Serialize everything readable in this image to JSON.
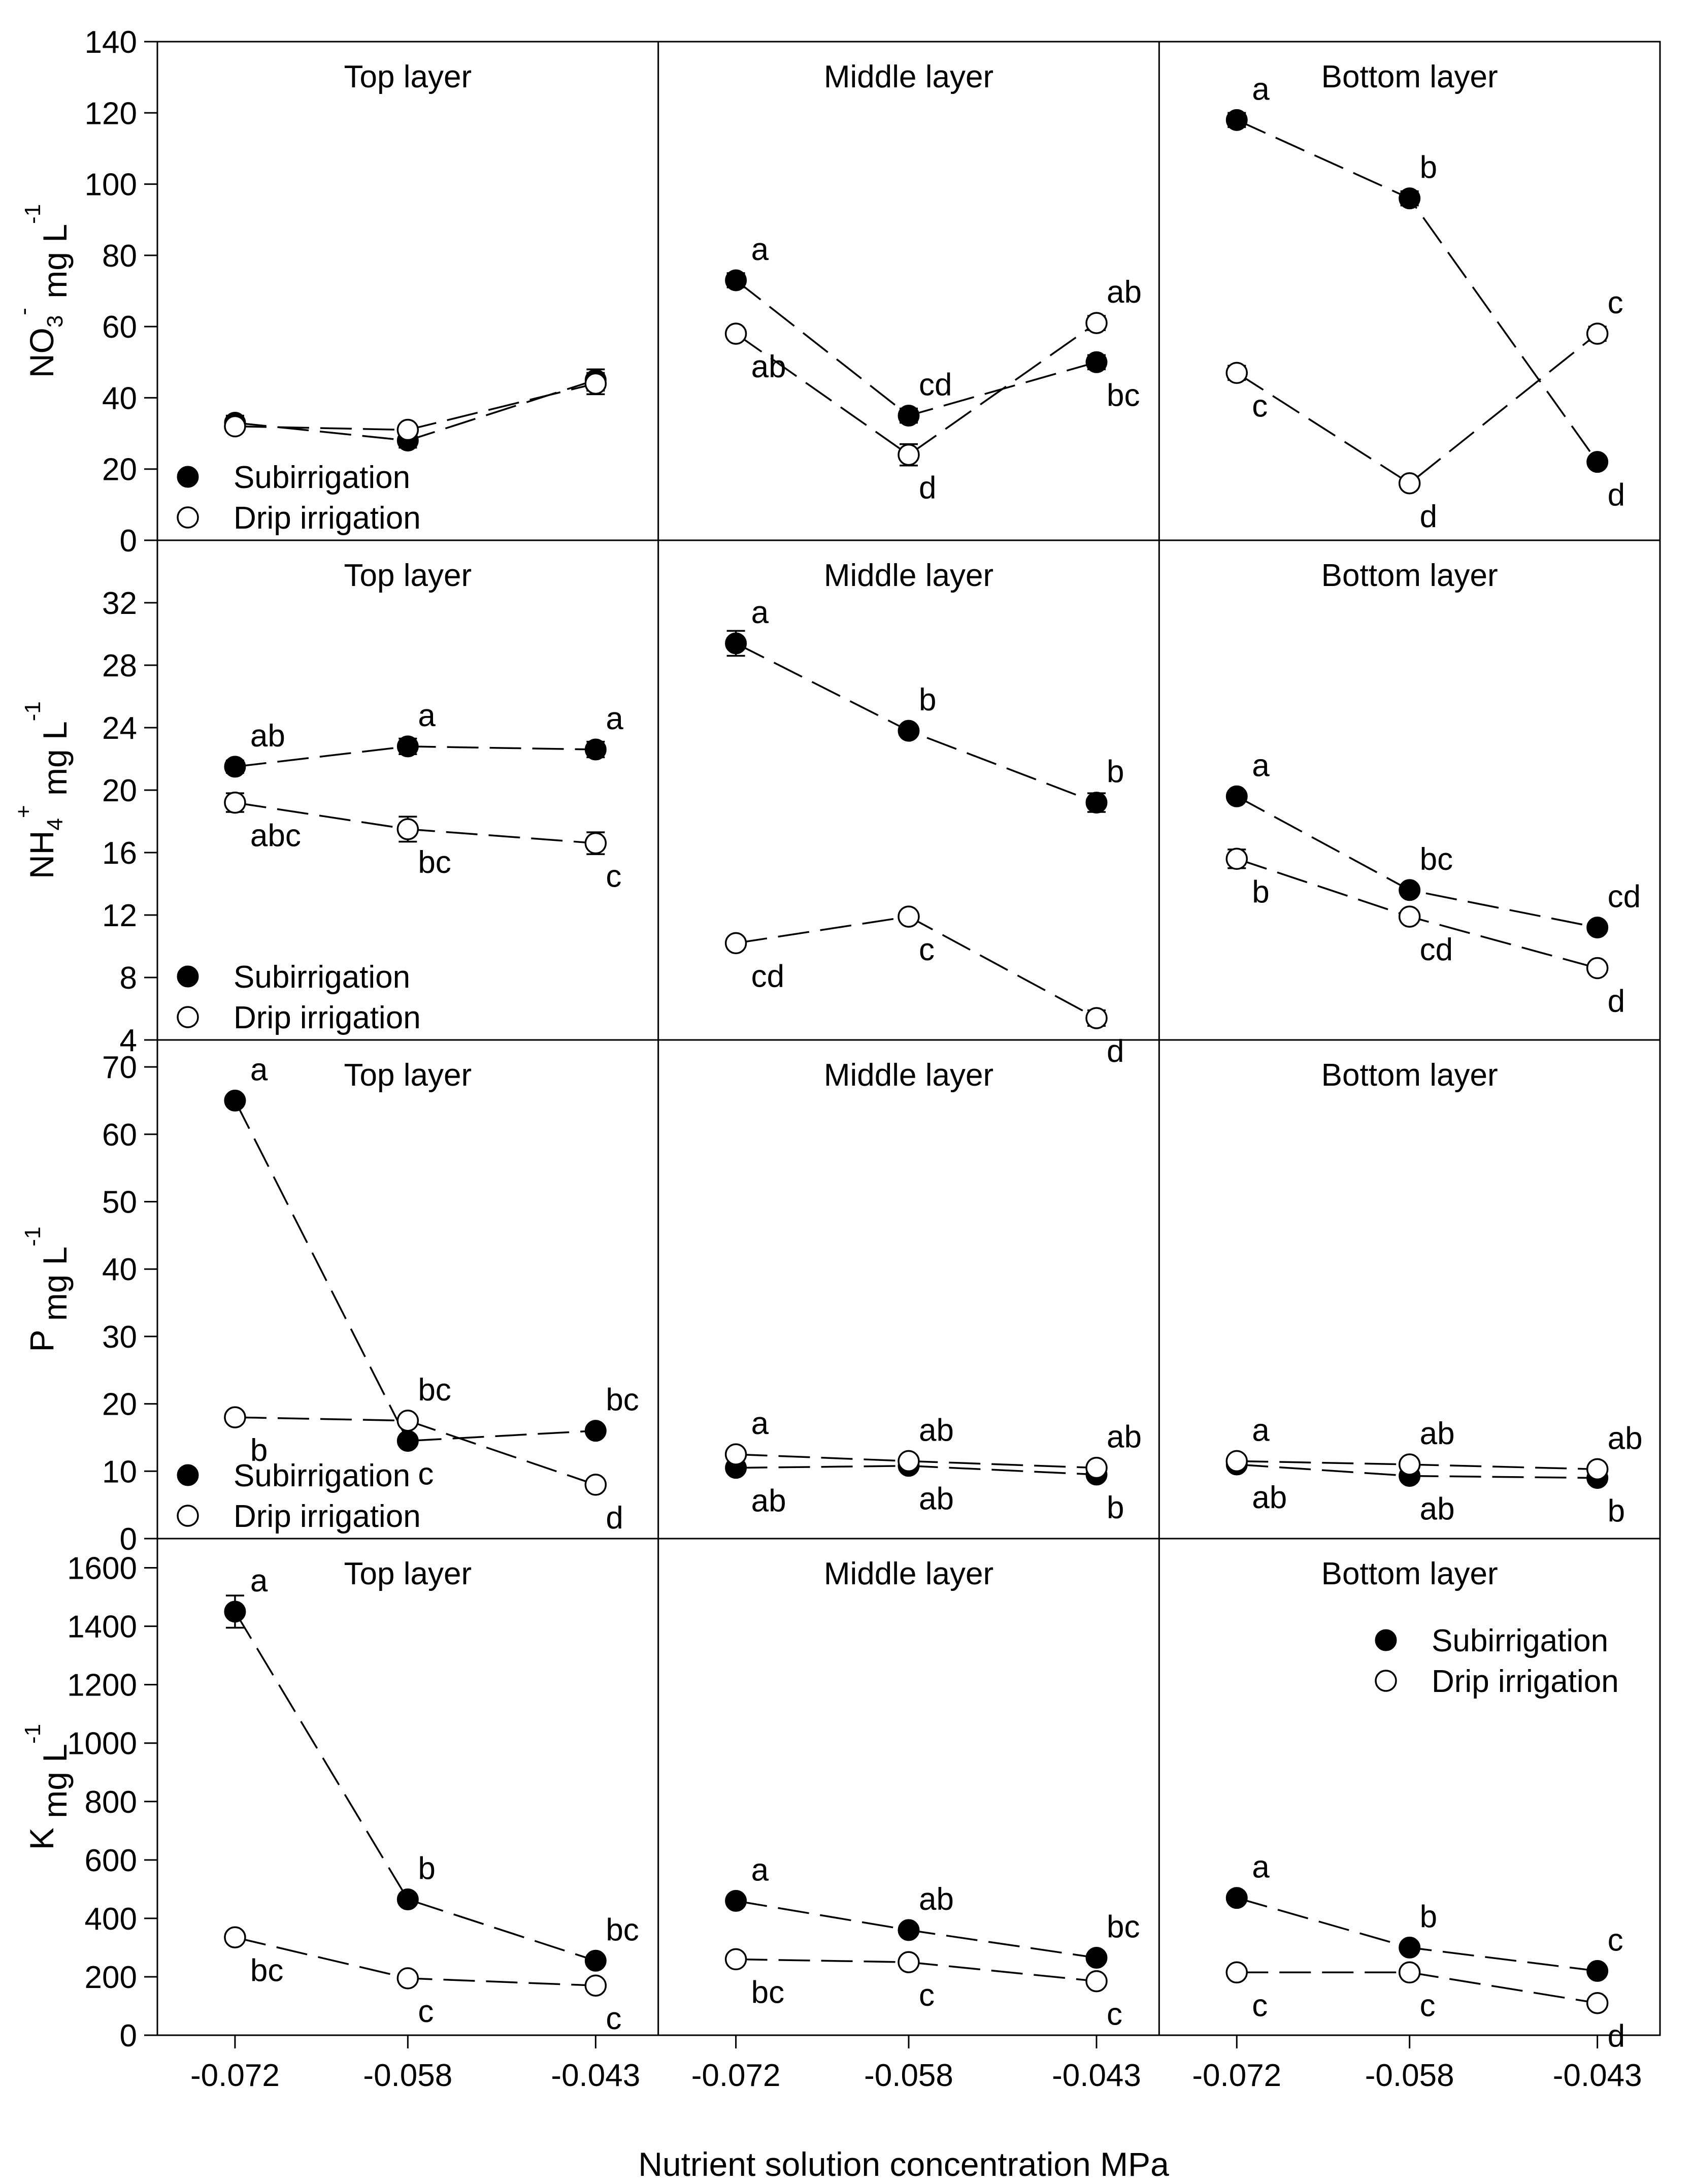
{
  "chart_data": {
    "type": "line",
    "xlabel": "Nutrient solution concentration MPa",
    "x_ticks": [
      "-0.072",
      "-0.058",
      "-0.043"
    ],
    "x": [
      -0.072,
      -0.058,
      -0.043
    ],
    "columns": [
      "Top layer",
      "Middle layer",
      "Bottom layer"
    ],
    "series_names": [
      "Subirrigation",
      "Drip irrigation"
    ],
    "rows": [
      {
        "ylabel_main": "NO",
        "ylabel_sub": "3",
        "ylabel_sup": "-",
        "ylabel_unit": " mg L",
        "ylabel_unit_sup": "-1",
        "ylim": [
          0,
          140
        ],
        "yticks": [
          "0",
          "20",
          "40",
          "60",
          "80",
          "100",
          "120",
          "140"
        ],
        "legend_col": 0,
        "panels": [
          {
            "title": "Top layer",
            "series": [
              {
                "name": "Subirrigation",
                "values": [
                  33,
                  28,
                  45
                ],
                "err": [
                  2,
                  2,
                  3
                ],
                "labels": [
                  "",
                  "",
                  ""
                ]
              },
              {
                "name": "Drip irrigation",
                "values": [
                  32,
                  31,
                  44
                ],
                "err": [
                  1,
                  1,
                  3
                ],
                "labels": [
                  "",
                  "",
                  ""
                ]
              }
            ]
          },
          {
            "title": "Middle layer",
            "series": [
              {
                "name": "Subirrigation",
                "values": [
                  73,
                  35,
                  50
                ],
                "err": [
                  2,
                  2,
                  2
                ],
                "labels": [
                  "a",
                  "cd",
                  "bc"
                ]
              },
              {
                "name": "Drip irrigation",
                "values": [
                  58,
                  24,
                  61
                ],
                "err": [
                  1,
                  3,
                  2
                ],
                "labels": [
                  "ab",
                  "d",
                  "ab"
                ]
              }
            ]
          },
          {
            "title": "Bottom layer",
            "series": [
              {
                "name": "Subirrigation",
                "values": [
                  118,
                  96,
                  22
                ],
                "err": [
                  2,
                  2,
                  1
                ],
                "labels": [
                  "a",
                  "b",
                  "d"
                ]
              },
              {
                "name": "Drip irrigation",
                "values": [
                  47,
                  16,
                  58
                ],
                "err": [
                  2,
                  1,
                  2
                ],
                "labels": [
                  "c",
                  "d",
                  "c"
                ]
              }
            ]
          }
        ]
      },
      {
        "ylabel_main": "NH",
        "ylabel_sub": "4",
        "ylabel_sup": "+",
        "ylabel_unit": " mg L",
        "ylabel_unit_sup": "-1",
        "ylim": [
          4,
          36
        ],
        "yticks": [
          "4",
          "8",
          "12",
          "16",
          "20",
          "24",
          "28",
          "32"
        ],
        "legend_col": 0,
        "panels": [
          {
            "title": "Top layer",
            "series": [
              {
                "name": "Subirrigation",
                "values": [
                  21.5,
                  22.8,
                  22.6
                ],
                "err": [
                  0.4,
                  0.5,
                  0.5
                ],
                "labels": [
                  "ab",
                  "a",
                  "a"
                ]
              },
              {
                "name": "Drip irrigation",
                "values": [
                  19.2,
                  17.5,
                  16.6
                ],
                "err": [
                  0.6,
                  0.8,
                  0.7
                ],
                "labels": [
                  "abc",
                  "bc",
                  "c"
                ]
              }
            ]
          },
          {
            "title": "Middle layer",
            "series": [
              {
                "name": "Subirrigation",
                "values": [
                  29.4,
                  23.8,
                  19.2
                ],
                "err": [
                  0.8,
                  0.3,
                  0.6
                ],
                "labels": [
                  "a",
                  "b",
                  "b"
                ]
              },
              {
                "name": "Drip irrigation",
                "values": [
                  10.2,
                  11.9,
                  5.4
                ],
                "err": [
                  0.2,
                  0.3,
                  0.5
                ],
                "labels": [
                  "cd",
                  "c",
                  "d"
                ]
              }
            ]
          },
          {
            "title": "Bottom layer",
            "series": [
              {
                "name": "Subirrigation",
                "values": [
                  19.6,
                  13.6,
                  11.2
                ],
                "err": [
                  0.3,
                  0.3,
                  0.3
                ],
                "labels": [
                  "a",
                  "bc",
                  "cd"
                ]
              },
              {
                "name": "Drip irrigation",
                "values": [
                  15.6,
                  11.9,
                  8.6
                ],
                "err": [
                  0.6,
                  0.3,
                  0.3
                ],
                "labels": [
                  "b",
                  "cd",
                  "d"
                ]
              }
            ]
          }
        ]
      },
      {
        "ylabel_main": "P",
        "ylabel_sub": "",
        "ylabel_sup": "",
        "ylabel_unit": " mg L",
        "ylabel_unit_sup": "-1",
        "ylim": [
          0,
          74
        ],
        "yticks": [
          "0",
          "10",
          "20",
          "30",
          "40",
          "50",
          "60",
          "70"
        ],
        "legend_col": 0,
        "panels": [
          {
            "title": "Top layer",
            "series": [
              {
                "name": "Subirrigation",
                "values": [
                  65,
                  14.5,
                  16
                ],
                "err": [
                  0.4,
                  0.4,
                  0.4
                ],
                "labels": [
                  "a",
                  "c",
                  "bc"
                ]
              },
              {
                "name": "Drip irrigation",
                "values": [
                  18,
                  17.5,
                  8
                ],
                "err": [
                  0.4,
                  0.4,
                  0.4
                ],
                "labels": [
                  "b",
                  "bc",
                  "d"
                ]
              }
            ]
          },
          {
            "title": "Middle layer",
            "series": [
              {
                "name": "Subirrigation",
                "values": [
                  10.5,
                  10.8,
                  9.5
                ],
                "err": [
                  0.3,
                  0.3,
                  0.3
                ],
                "labels": [
                  "ab",
                  "ab",
                  "b"
                ]
              },
              {
                "name": "Drip irrigation",
                "values": [
                  12.5,
                  11.5,
                  10.5
                ],
                "err": [
                  0.3,
                  0.3,
                  0.3
                ],
                "labels": [
                  "a",
                  "ab",
                  "ab"
                ]
              }
            ]
          },
          {
            "title": "Bottom layer",
            "series": [
              {
                "name": "Subirrigation",
                "values": [
                  11,
                  9.3,
                  9
                ],
                "err": [
                  0.3,
                  0.3,
                  0.3
                ],
                "labels": [
                  "ab",
                  "ab",
                  "b"
                ]
              },
              {
                "name": "Drip irrigation",
                "values": [
                  11.5,
                  11,
                  10.3
                ],
                "err": [
                  0.3,
                  0.3,
                  0.3
                ],
                "labels": [
                  "a",
                  "ab",
                  "ab"
                ]
              }
            ]
          }
        ]
      },
      {
        "ylabel_main": "K",
        "ylabel_sub": "",
        "ylabel_sup": "",
        "ylabel_unit": " mg L",
        "ylabel_unit_sup": "-1",
        "ylim": [
          0,
          1700
        ],
        "yticks": [
          "0",
          "200",
          "400",
          "600",
          "800",
          "1000",
          "1200",
          "1400",
          "1600"
        ],
        "legend_col": 2,
        "panels": [
          {
            "title": "Top layer",
            "series": [
              {
                "name": "Subirrigation",
                "values": [
                  1450,
                  465,
                  255
                ],
                "err": [
                  55,
                  10,
                  8
                ],
                "labels": [
                  "a",
                  "b",
                  "bc"
                ]
              },
              {
                "name": "Drip irrigation",
                "values": [
                  335,
                  195,
                  170
                ],
                "err": [
                  8,
                  8,
                  8
                ],
                "labels": [
                  "bc",
                  "c",
                  "c"
                ]
              }
            ]
          },
          {
            "title": "Middle layer",
            "series": [
              {
                "name": "Subirrigation",
                "values": [
                  460,
                  360,
                  265
                ],
                "err": [
                  8,
                  8,
                  8
                ],
                "labels": [
                  "a",
                  "ab",
                  "bc"
                ]
              },
              {
                "name": "Drip irrigation",
                "values": [
                  260,
                  250,
                  185
                ],
                "err": [
                  8,
                  8,
                  8
                ],
                "labels": [
                  "bc",
                  "c",
                  "c"
                ]
              }
            ]
          },
          {
            "title": "Bottom layer",
            "series": [
              {
                "name": "Subirrigation",
                "values": [
                  470,
                  300,
                  220
                ],
                "err": [
                  8,
                  8,
                  8
                ],
                "labels": [
                  "a",
                  "b",
                  "c"
                ]
              },
              {
                "name": "Drip irrigation",
                "values": [
                  215,
                  215,
                  110
                ],
                "err": [
                  8,
                  8,
                  8
                ],
                "labels": [
                  "c",
                  "c",
                  "d"
                ]
              }
            ]
          }
        ]
      }
    ]
  }
}
